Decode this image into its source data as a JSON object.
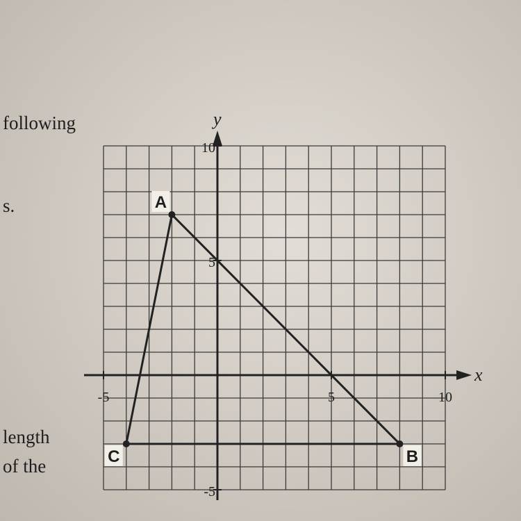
{
  "margin_text": [
    "following",
    "s.",
    "length",
    "of the"
  ],
  "graph": {
    "x_label": "x",
    "y_label": "y",
    "xlim": [
      -5,
      10
    ],
    "ylim": [
      -5,
      10
    ],
    "xticks": [
      -5,
      5,
      10
    ],
    "yticks": [
      -5,
      5,
      10
    ],
    "points": [
      {
        "label": "A",
        "x": -2,
        "y": 7
      },
      {
        "label": "B",
        "x": 8,
        "y": -3
      },
      {
        "label": "C",
        "x": -4,
        "y": -3
      }
    ]
  }
}
